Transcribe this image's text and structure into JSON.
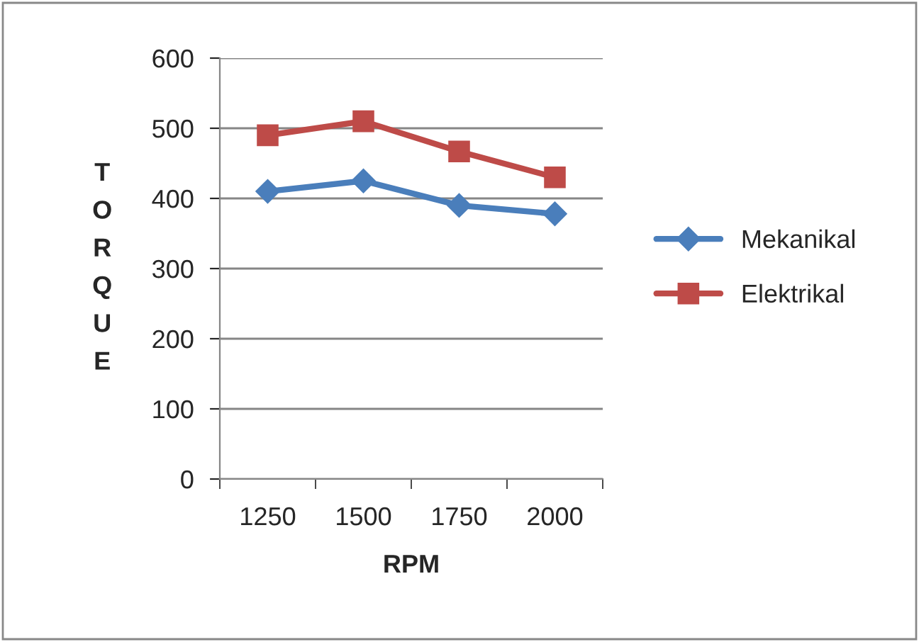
{
  "chart_data": {
    "type": "line",
    "xlabel": "RPM",
    "ylabel": "TORQUE",
    "categories": [
      "1250",
      "1500",
      "1750",
      "2000"
    ],
    "series": [
      {
        "name": "Mekanikal",
        "color": "#4a7ebb",
        "marker": "diamond",
        "values": [
          410,
          425,
          390,
          378
        ]
      },
      {
        "name": "Elektrikal",
        "color": "#be4b48",
        "marker": "square",
        "values": [
          490,
          510,
          467,
          430
        ]
      }
    ],
    "ylim": [
      0,
      600
    ],
    "yticks": [
      0,
      100,
      200,
      300,
      400,
      500,
      600
    ],
    "grid": "y",
    "legend": "right",
    "line_style": "solid"
  }
}
